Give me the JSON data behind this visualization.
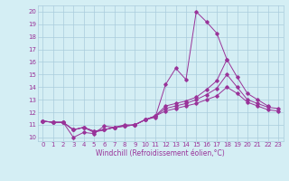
{
  "xlabel": "Windchill (Refroidissement éolien,°C)",
  "x": [
    0,
    1,
    2,
    3,
    4,
    5,
    6,
    7,
    8,
    9,
    10,
    11,
    12,
    13,
    14,
    15,
    16,
    17,
    18,
    19,
    20,
    21,
    22,
    23
  ],
  "line1": [
    11.3,
    11.2,
    11.2,
    10.0,
    10.4,
    10.3,
    10.9,
    10.8,
    11.0,
    11.0,
    11.4,
    11.6,
    14.2,
    15.5,
    14.6,
    20.0,
    19.2,
    18.3,
    16.2,
    null,
    null,
    null,
    null,
    null
  ],
  "line2": [
    11.3,
    11.2,
    11.2,
    10.6,
    10.8,
    10.4,
    10.6,
    10.8,
    10.9,
    11.0,
    11.4,
    11.7,
    12.5,
    12.7,
    12.9,
    13.2,
    13.8,
    14.5,
    16.2,
    14.8,
    13.5,
    13.0,
    12.5,
    null
  ],
  "line3": [
    11.3,
    11.2,
    11.2,
    10.6,
    10.8,
    10.5,
    10.6,
    10.8,
    10.9,
    11.0,
    11.4,
    11.7,
    12.3,
    12.5,
    12.7,
    13.0,
    13.4,
    13.9,
    15.0,
    14.0,
    13.0,
    12.7,
    12.4,
    12.3
  ],
  "line4": [
    11.3,
    11.2,
    11.2,
    10.6,
    10.8,
    10.5,
    10.6,
    10.8,
    10.9,
    11.0,
    11.4,
    11.7,
    12.1,
    12.3,
    12.5,
    12.7,
    13.0,
    13.3,
    14.0,
    13.5,
    12.8,
    12.5,
    12.2,
    12.1
  ],
  "line_color": "#993399",
  "bg_color": "#d4eef4",
  "grid_color": "#aaccdd",
  "ylim": [
    9.7,
    20.5
  ],
  "xlim": [
    -0.5,
    23.5
  ],
  "yticks": [
    10,
    11,
    12,
    13,
    14,
    15,
    16,
    17,
    18,
    19,
    20
  ],
  "xticks": [
    0,
    1,
    2,
    3,
    4,
    5,
    6,
    7,
    8,
    9,
    10,
    11,
    12,
    13,
    14,
    15,
    16,
    17,
    18,
    19,
    20,
    21,
    22,
    23
  ],
  "tick_fontsize": 5.0,
  "xlabel_fontsize": 5.5
}
